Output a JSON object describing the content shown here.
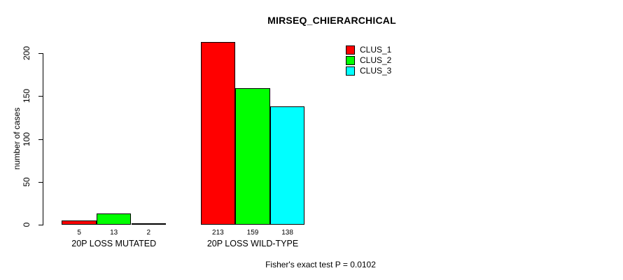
{
  "chart_data": {
    "type": "bar",
    "title": "MIRSEQ_CHIERARCHICAL",
    "ylabel": "number of cases",
    "xlabel": "",
    "categories": [
      "20P LOSS MUTATED",
      "20P LOSS WILD-TYPE"
    ],
    "series": [
      {
        "name": "CLUS_1",
        "color": "#FF0000",
        "values": [
          5,
          213
        ]
      },
      {
        "name": "CLUS_2",
        "color": "#00FF00",
        "values": [
          13,
          159
        ]
      },
      {
        "name": "CLUS_3",
        "color": "#00FFFF",
        "values": [
          2,
          138
        ]
      }
    ],
    "yticks": [
      0,
      50,
      100,
      150,
      200
    ],
    "ylim": [
      0,
      213
    ],
    "grid": false,
    "legend_position": "top-right",
    "bar_value_labels": [
      [
        "5",
        "13",
        "2"
      ],
      [
        "213",
        "159",
        "138"
      ]
    ],
    "annotation": "Fisher's exact test P = 0.0102"
  }
}
